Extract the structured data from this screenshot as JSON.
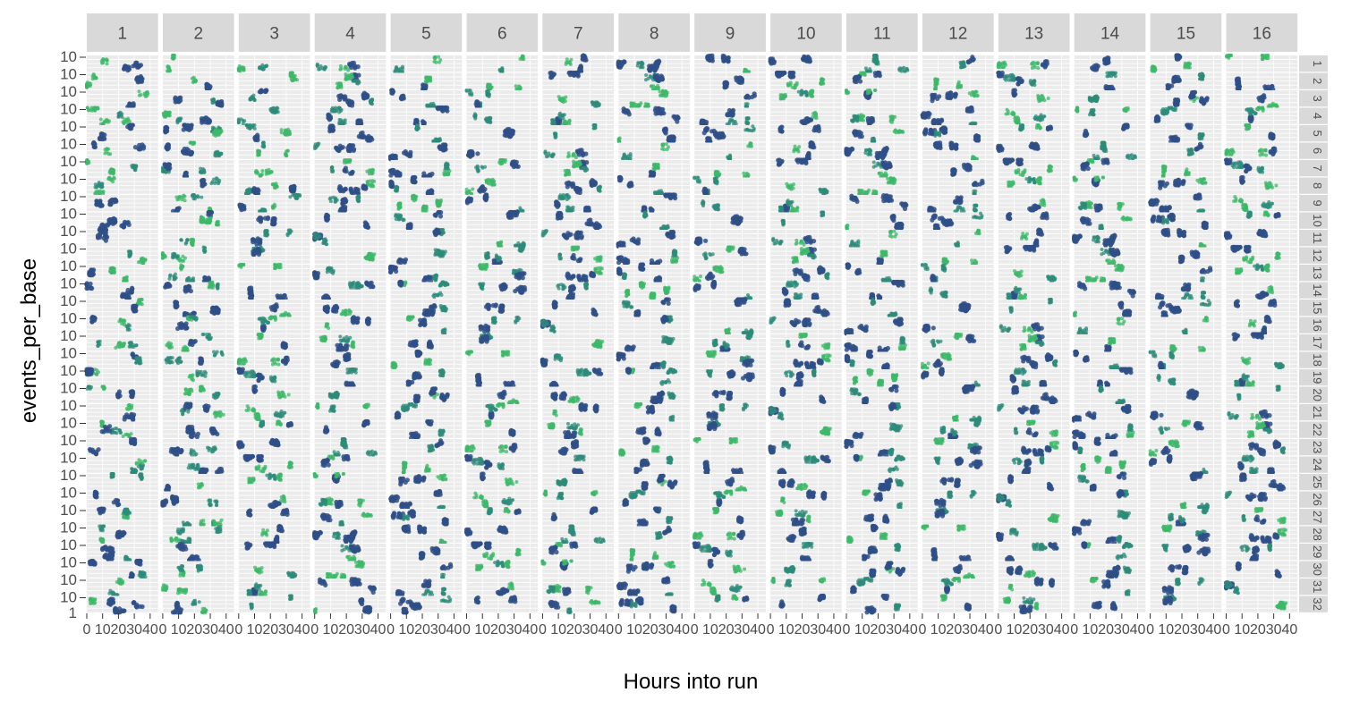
{
  "chart_data": {
    "type": "scatter",
    "xlabel": "Hours into run",
    "ylabel": "events_per_base",
    "column_facets": [
      "1",
      "2",
      "3",
      "4",
      "5",
      "6",
      "7",
      "8",
      "9",
      "10",
      "11",
      "12",
      "13",
      "14",
      "15",
      "16"
    ],
    "row_facets": [
      "1",
      "2",
      "3",
      "4",
      "5",
      "6",
      "7",
      "8",
      "9",
      "10",
      "11",
      "12",
      "13",
      "14",
      "15",
      "16",
      "17",
      "18",
      "19",
      "20",
      "21",
      "22",
      "23",
      "24",
      "25",
      "26",
      "27",
      "28",
      "29",
      "30",
      "31",
      "32"
    ],
    "x_ticks": [
      "0",
      "10",
      "20",
      "30",
      "40"
    ],
    "xlim": [
      0,
      45
    ],
    "y_ticks": [
      "1",
      "10"
    ],
    "y_scale": "log10",
    "ylim": [
      1,
      10
    ],
    "grid": true,
    "colors": {
      "high": "#2f4f87",
      "mid": "#2e8b7a",
      "low": "#3db86a",
      "panel": "#ebebeb",
      "strip": "#d9d9d9"
    },
    "legend": "none",
    "note_points": "Clusters of points per panel spanning roughly 0-35 hours, events_per_base between about 1 and 10; each panel shows a distinct mix of dense green/teal low clusters and dark blue high clusters."
  }
}
